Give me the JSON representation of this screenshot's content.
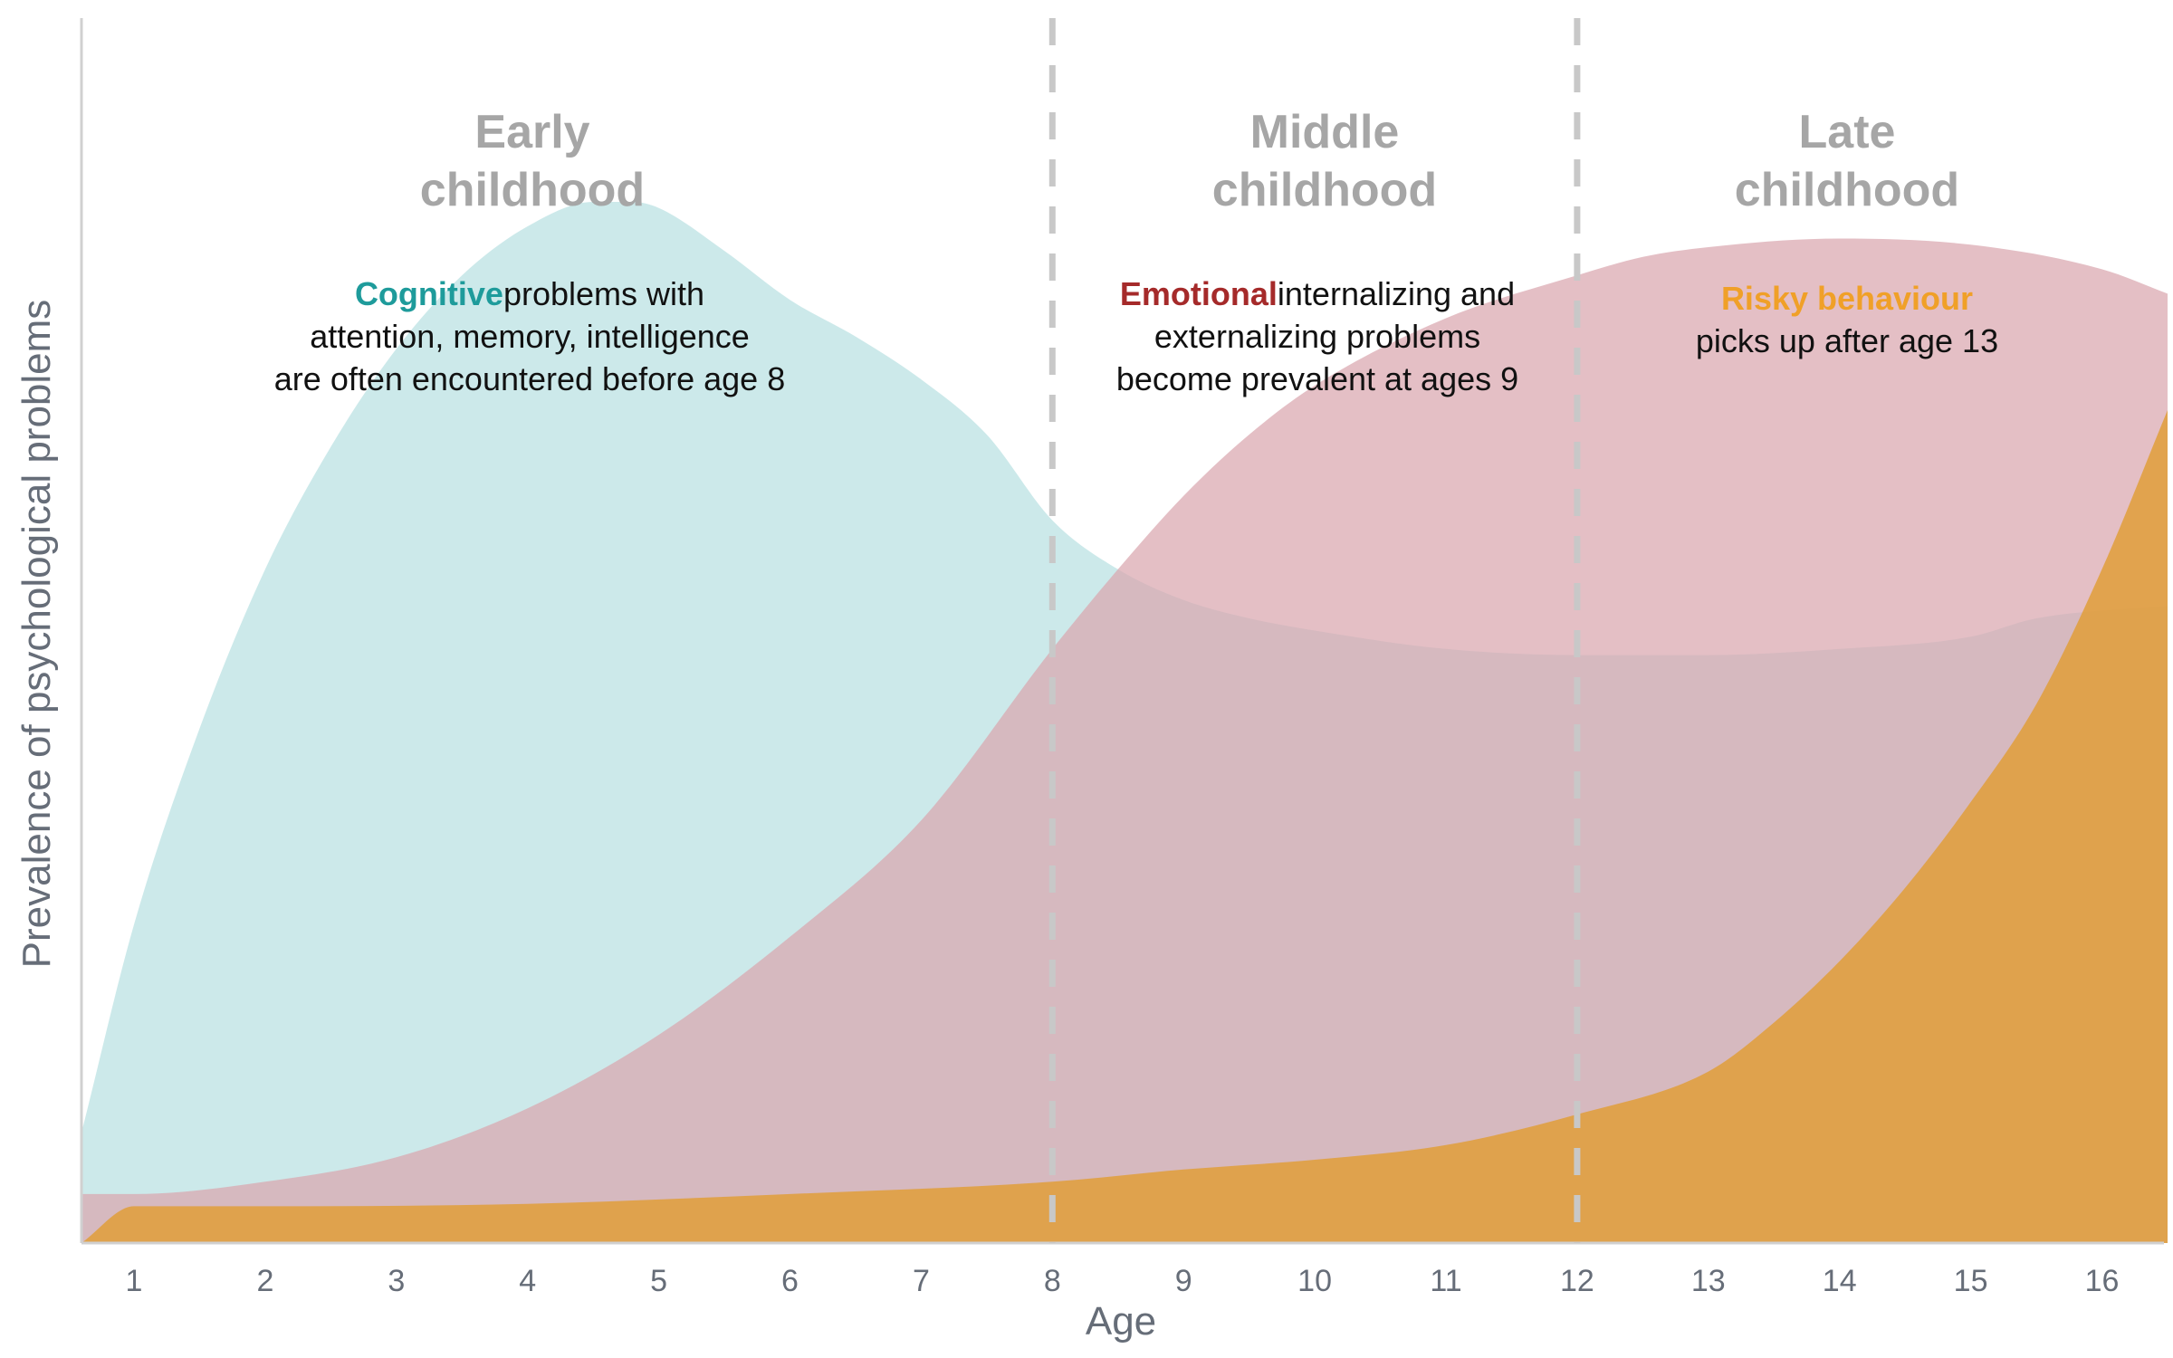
{
  "chart_data": {
    "type": "area",
    "xlabel": "Age",
    "ylabel": "Prevalence of psychological problems",
    "xlim": [
      0.6,
      16.5
    ],
    "ylim": [
      0,
      100
    ],
    "x_ticks": [
      1,
      2,
      3,
      4,
      5,
      6,
      7,
      8,
      9,
      10,
      11,
      12,
      13,
      14,
      15,
      16
    ],
    "grid": false,
    "stage_dividers": [
      8,
      12
    ],
    "stages": [
      {
        "line1": "Early",
        "line2": "childhood",
        "center": 4.5
      },
      {
        "line1": "Middle",
        "line2": "childhood",
        "center": 10.5
      },
      {
        "line1": "Late",
        "line2": "childhood",
        "center": 14.5
      }
    ],
    "annotations": [
      {
        "center": 4.6,
        "emphasis": "Cognitive",
        "emphasis_color": "#1e9b9b",
        "line1_rest": "problems  with",
        "line2": "attention, memory, intelligence",
        "line3": "are often encountered  before age 8"
      },
      {
        "center": 10.5,
        "emphasis": "Emotional",
        "emphasis_color": "#a52a2a",
        "line1_rest": "internalizing and",
        "line2": "externalizing problems",
        "line3": "become  prevalent at ages  9"
      },
      {
        "center": 14.5,
        "emphasis": "Risky behaviour",
        "emphasis_color": "#f0a028",
        "line1_rest": "",
        "line2": "picks up after age 13",
        "line3": ""
      }
    ],
    "series": [
      {
        "key": "cognitive",
        "color": "#b9e0e2",
        "x": [
          0.6,
          1.0,
          1.5,
          2.0,
          2.5,
          3.0,
          3.5,
          4.0,
          4.5,
          4.8,
          5.0,
          5.5,
          6.0,
          6.5,
          7.0,
          7.5,
          8.0,
          8.5,
          9.0,
          9.5,
          10.0,
          11.0,
          12.0,
          13.0,
          14.0,
          15.0,
          15.5,
          16.5
        ],
        "values": [
          9,
          26,
          42,
          55,
          65,
          73,
          79,
          83,
          85,
          85,
          84.5,
          81,
          77,
          74,
          70.5,
          66,
          59,
          55,
          52.5,
          51,
          50,
          48.5,
          48,
          48,
          48.5,
          49.5,
          51,
          52
        ]
      },
      {
        "key": "emotional",
        "color": "#d9a6ae",
        "x": [
          0.6,
          1.0,
          2.0,
          3.0,
          4.0,
          5.0,
          6.0,
          7.0,
          8.0,
          8.5,
          9.0,
          9.5,
          10.0,
          11.0,
          12.0,
          12.5,
          13.0,
          14.0,
          15.0,
          16.0,
          16.5
        ],
        "values": [
          4,
          4,
          5,
          7,
          11,
          17,
          25,
          34.5,
          48.5,
          55,
          61,
          66,
          70,
          75.5,
          79,
          80.5,
          81.3,
          82,
          81.5,
          79.5,
          77.5
        ]
      },
      {
        "key": "risky",
        "color": "#e0a040",
        "x": [
          0.6,
          1.0,
          2.0,
          4.0,
          6.0,
          8.0,
          9.0,
          10.0,
          11.0,
          12.0,
          13.0,
          13.5,
          14.0,
          14.5,
          15.0,
          15.5,
          16.0,
          16.5
        ],
        "values": [
          0,
          3,
          3,
          3.2,
          4,
          5,
          6,
          6.8,
          8,
          10.5,
          14,
          18,
          23,
          29,
          36,
          44,
          55,
          68
        ]
      }
    ]
  }
}
